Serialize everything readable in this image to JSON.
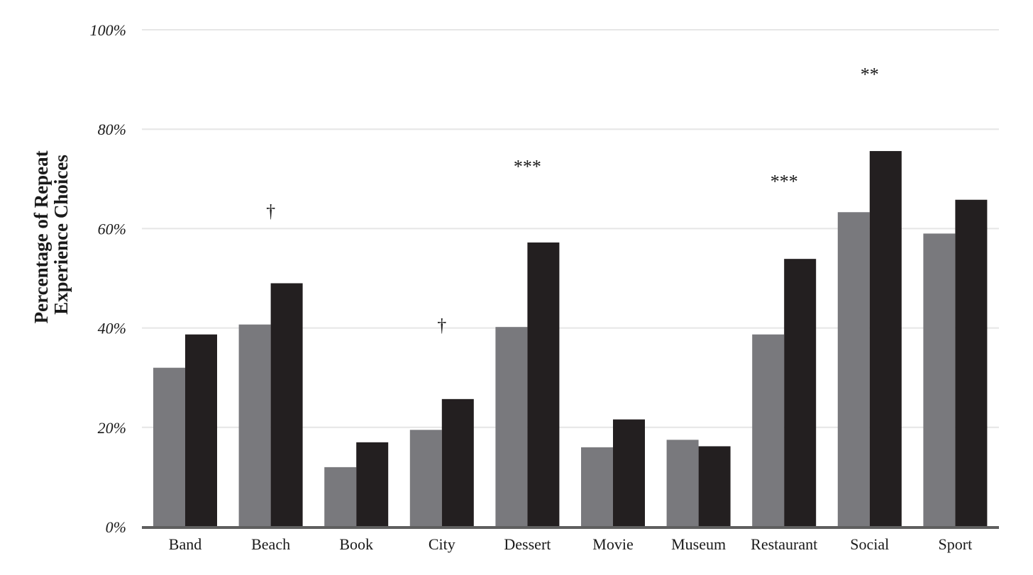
{
  "chart_data": {
    "type": "bar",
    "title": "",
    "xlabel": "",
    "ylabel": [
      "Percentage of Repeat",
      "Experience Choices"
    ],
    "ylim": [
      0,
      100
    ],
    "yticks": [
      0,
      20,
      40,
      60,
      80,
      100
    ],
    "ytick_labels": [
      "0%",
      "20%",
      "40%",
      "60%",
      "80%",
      "100%"
    ],
    "grid": true,
    "legend": "none",
    "categories": [
      "Band",
      "Beach",
      "Book",
      "City",
      "Dessert",
      "Movie",
      "Museum",
      "Restaurant",
      "Social",
      "Sport"
    ],
    "series": [
      {
        "color": "#79797d",
        "values": [
          32,
          40.7,
          12,
          19.5,
          40.2,
          16,
          17.5,
          38.7,
          63.3,
          59
        ]
      },
      {
        "color": "#231f20",
        "values": [
          38.7,
          49,
          17,
          25.7,
          57.2,
          21.6,
          16.2,
          53.9,
          75.6,
          65.8
        ]
      }
    ],
    "annotations": [
      {
        "category": "Beach",
        "text": "†",
        "y": 64
      },
      {
        "category": "City",
        "text": "†",
        "y": 41
      },
      {
        "category": "Dessert",
        "text": "***",
        "y": 73
      },
      {
        "category": "Restaurant",
        "text": "***",
        "y": 70
      },
      {
        "category": "Social",
        "text": "**",
        "y": 91.5
      }
    ],
    "colors": {
      "grid": "#e6e6e6",
      "axis": "#5f5f5f",
      "text": "#1a1a1a"
    }
  }
}
